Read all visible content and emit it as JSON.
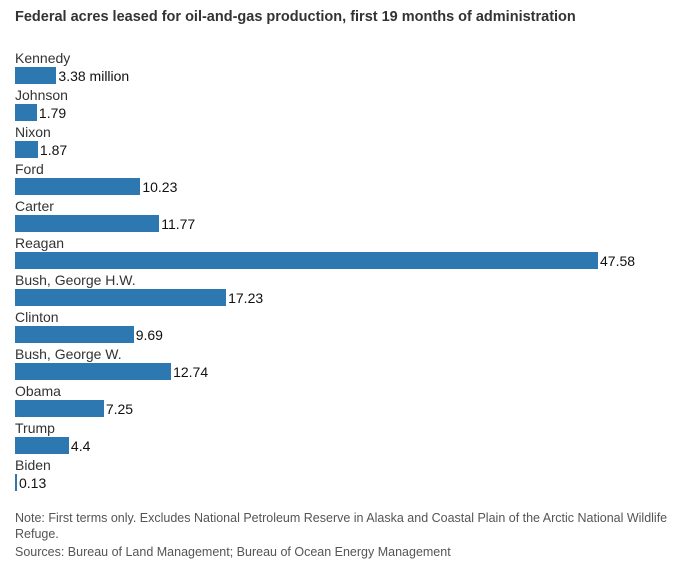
{
  "chart_data": {
    "type": "bar",
    "orientation": "horizontal",
    "title": "Federal acres leased for oil-and-gas production, first 19 months of administration",
    "categories": [
      "Kennedy",
      "Johnson",
      "Nixon",
      "Ford",
      "Carter",
      "Reagan",
      "Bush, George H.W.",
      "Clinton",
      "Bush, George W.",
      "Obama",
      "Trump",
      "Biden"
    ],
    "values": [
      3.38,
      1.79,
      1.87,
      10.23,
      11.77,
      47.58,
      17.23,
      9.69,
      12.74,
      7.25,
      4.4,
      0.13
    ],
    "value_labels": [
      "3.38 million",
      "1.79",
      "1.87",
      "10.23",
      "11.77",
      "47.58",
      "17.23",
      "9.69",
      "12.74",
      "7.25",
      "4.4",
      "0.13"
    ],
    "xlim": [
      0,
      47.58
    ],
    "bar_color": "#2e78b2",
    "grid": false,
    "legend": "none"
  },
  "footer": {
    "note": "Note: First terms only. Excludes National Petroleum Reserve in Alaska and Coastal Plain of the Arctic National Wildlife Refuge.",
    "sources": "Sources: Bureau of Land Management; Bureau of Ocean Energy Management"
  }
}
